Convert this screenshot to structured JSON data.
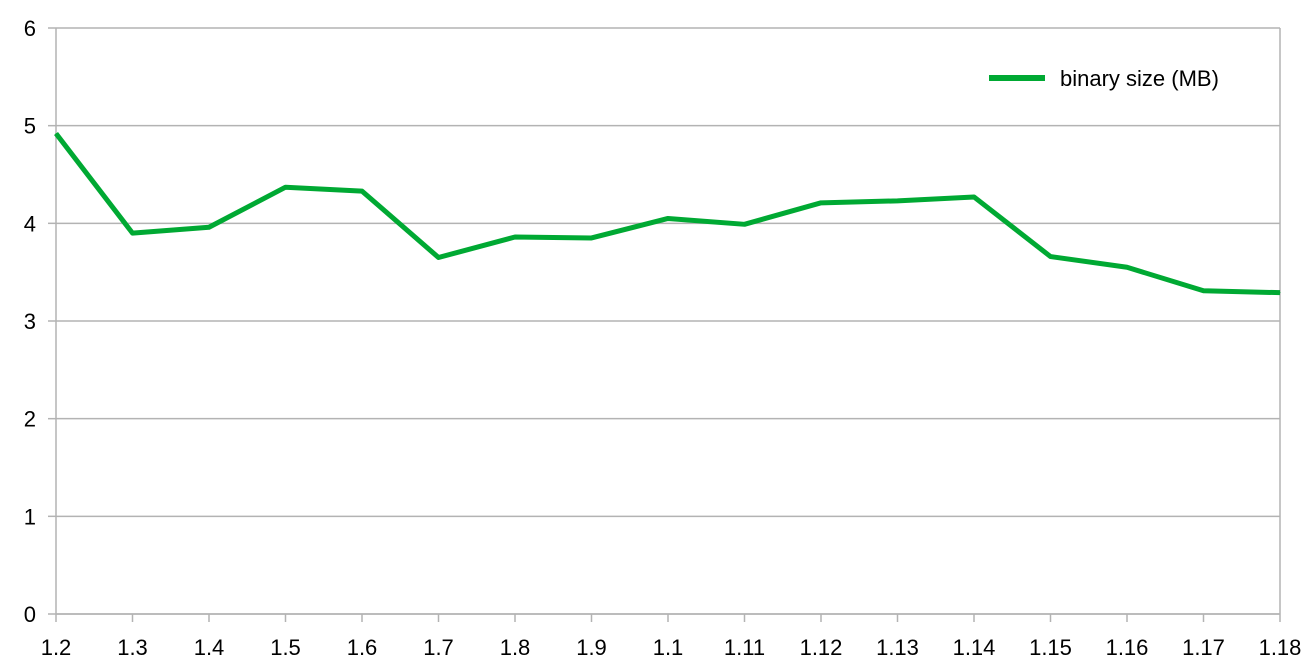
{
  "chart_data": {
    "type": "line",
    "title": "",
    "xlabel": "",
    "ylabel": "",
    "categories": [
      "1.2",
      "1.3",
      "1.4",
      "1.5",
      "1.6",
      "1.7",
      "1.8",
      "1.9",
      "1.1",
      "1.11",
      "1.12",
      "1.13",
      "1.14",
      "1.15",
      "1.16",
      "1.17",
      "1.18"
    ],
    "series": [
      {
        "name": "binary size (MB)",
        "values": [
          4.92,
          3.9,
          3.96,
          4.37,
          4.33,
          3.65,
          3.86,
          3.85,
          4.05,
          3.99,
          4.21,
          4.23,
          4.27,
          3.66,
          3.55,
          3.31,
          3.29
        ],
        "color": "#00a933"
      }
    ],
    "ylim": [
      0,
      6
    ],
    "yticks": [
      0,
      1,
      2,
      3,
      4,
      5,
      6
    ],
    "grid": true,
    "legend_position": "top-right"
  }
}
